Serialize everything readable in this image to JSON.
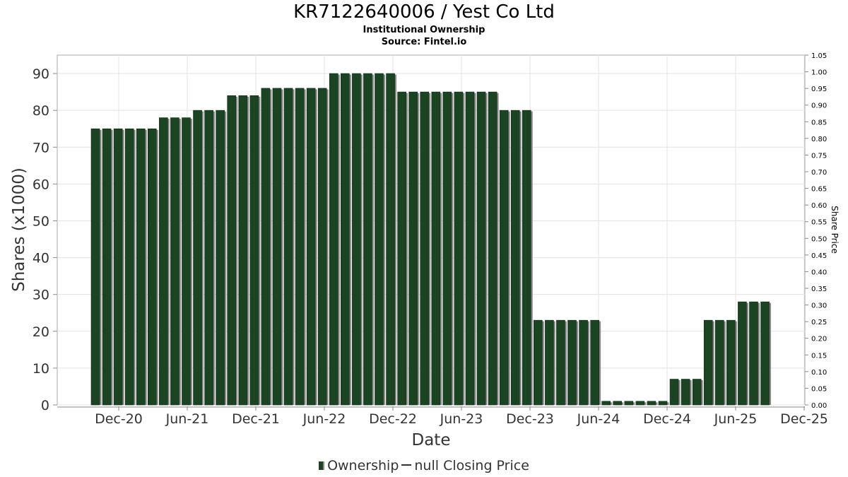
{
  "title": "KR7122640006 / Yest Co Ltd",
  "subtitle1": "Institutional Ownership",
  "subtitle2": "Source: Fintel.io",
  "legend": {
    "ownership": "Ownership",
    "price": "null Closing Price"
  },
  "colors": {
    "bar": "#1b4423",
    "shadow": "#8a8a8a",
    "grid": "#e3e3e3"
  },
  "chart_data": {
    "type": "bar",
    "title": "KR7122640006 / Yest Co Ltd",
    "xlabel": "Date",
    "ylabel": "Shares (x1000)",
    "y2label": "Share Price",
    "ylim": [
      0,
      95
    ],
    "y2lim": [
      0,
      1.05
    ],
    "yticks": [
      0,
      10,
      20,
      30,
      40,
      50,
      60,
      70,
      80,
      90
    ],
    "y2ticks": [
      "0.00",
      "0.05",
      "0.10",
      "0.15",
      "0.20",
      "0.25",
      "0.30",
      "0.35",
      "0.40",
      "0.45",
      "0.50",
      "0.55",
      "0.60",
      "0.65",
      "0.70",
      "0.75",
      "0.80",
      "0.85",
      "0.90",
      "0.95",
      "1.00",
      "1.05"
    ],
    "xticks": [
      "Dec-20",
      "Jun-21",
      "Dec-21",
      "Jun-22",
      "Dec-22",
      "Jun-23",
      "Dec-23",
      "Jun-24",
      "Dec-24",
      "Jun-25",
      "Dec-25"
    ],
    "grid": true,
    "legend_position": "bottom",
    "series": [
      {
        "name": "Ownership",
        "values": [
          75,
          75,
          75,
          75,
          75,
          75,
          78,
          78,
          78,
          80,
          80,
          80,
          84,
          84,
          84,
          86,
          86,
          86,
          86,
          86,
          86,
          90,
          90,
          90,
          90,
          90,
          90,
          85,
          85,
          85,
          85,
          85,
          85,
          85,
          85,
          85,
          80,
          80,
          80,
          23,
          23,
          23,
          23,
          23,
          23,
          1,
          1,
          1,
          1,
          1,
          1,
          7,
          7,
          7,
          23,
          23,
          23,
          28,
          28,
          28
        ]
      }
    ]
  }
}
